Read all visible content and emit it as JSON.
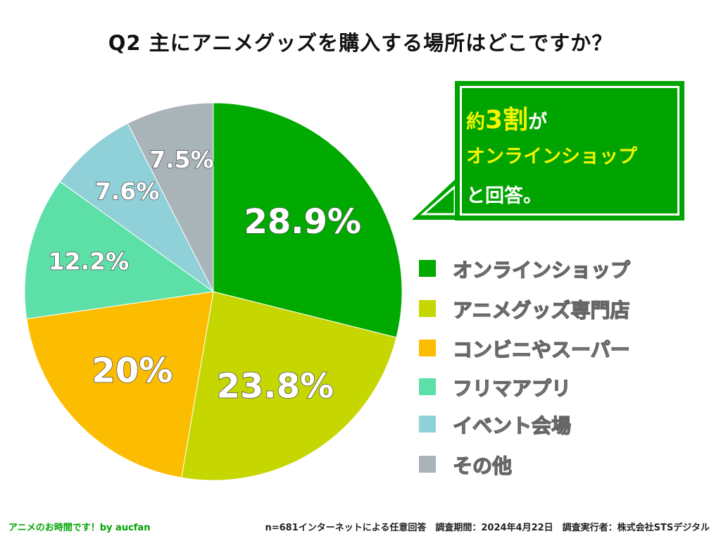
{
  "chart_data": {
    "type": "pie",
    "title": "Q2 主にアニメグッズを購入する場所はどこですか？",
    "categories": [
      "オンラインショップ",
      "アニメグッズ専門店",
      "コンビニやスーパー",
      "フリマアプリ",
      "イベント会場",
      "その他"
    ],
    "values": [
      28.9,
      23.8,
      20,
      12.2,
      7.6,
      7.5
    ],
    "labels": [
      "28.9%",
      "23.8%",
      "20%",
      "12.2%",
      "7.6%",
      "7.5%"
    ],
    "colors": [
      "#00aa00",
      "#c6d600",
      "#fcbd00",
      "#5ce0a8",
      "#90d0d8",
      "#a8b4b8"
    ],
    "legend_position": "right"
  },
  "callout": {
    "line1_pre": "約",
    "line1_em": "3割",
    "line1_post": "が",
    "line2": "オンラインショップ",
    "line3": "と回答。"
  },
  "footer": {
    "left": "アニメのお時間です！by aucfan",
    "right": "n=681インターネットによる任意回答　調査期間：2024年4月22日　調査実行者：株式会社STSデジタル"
  }
}
